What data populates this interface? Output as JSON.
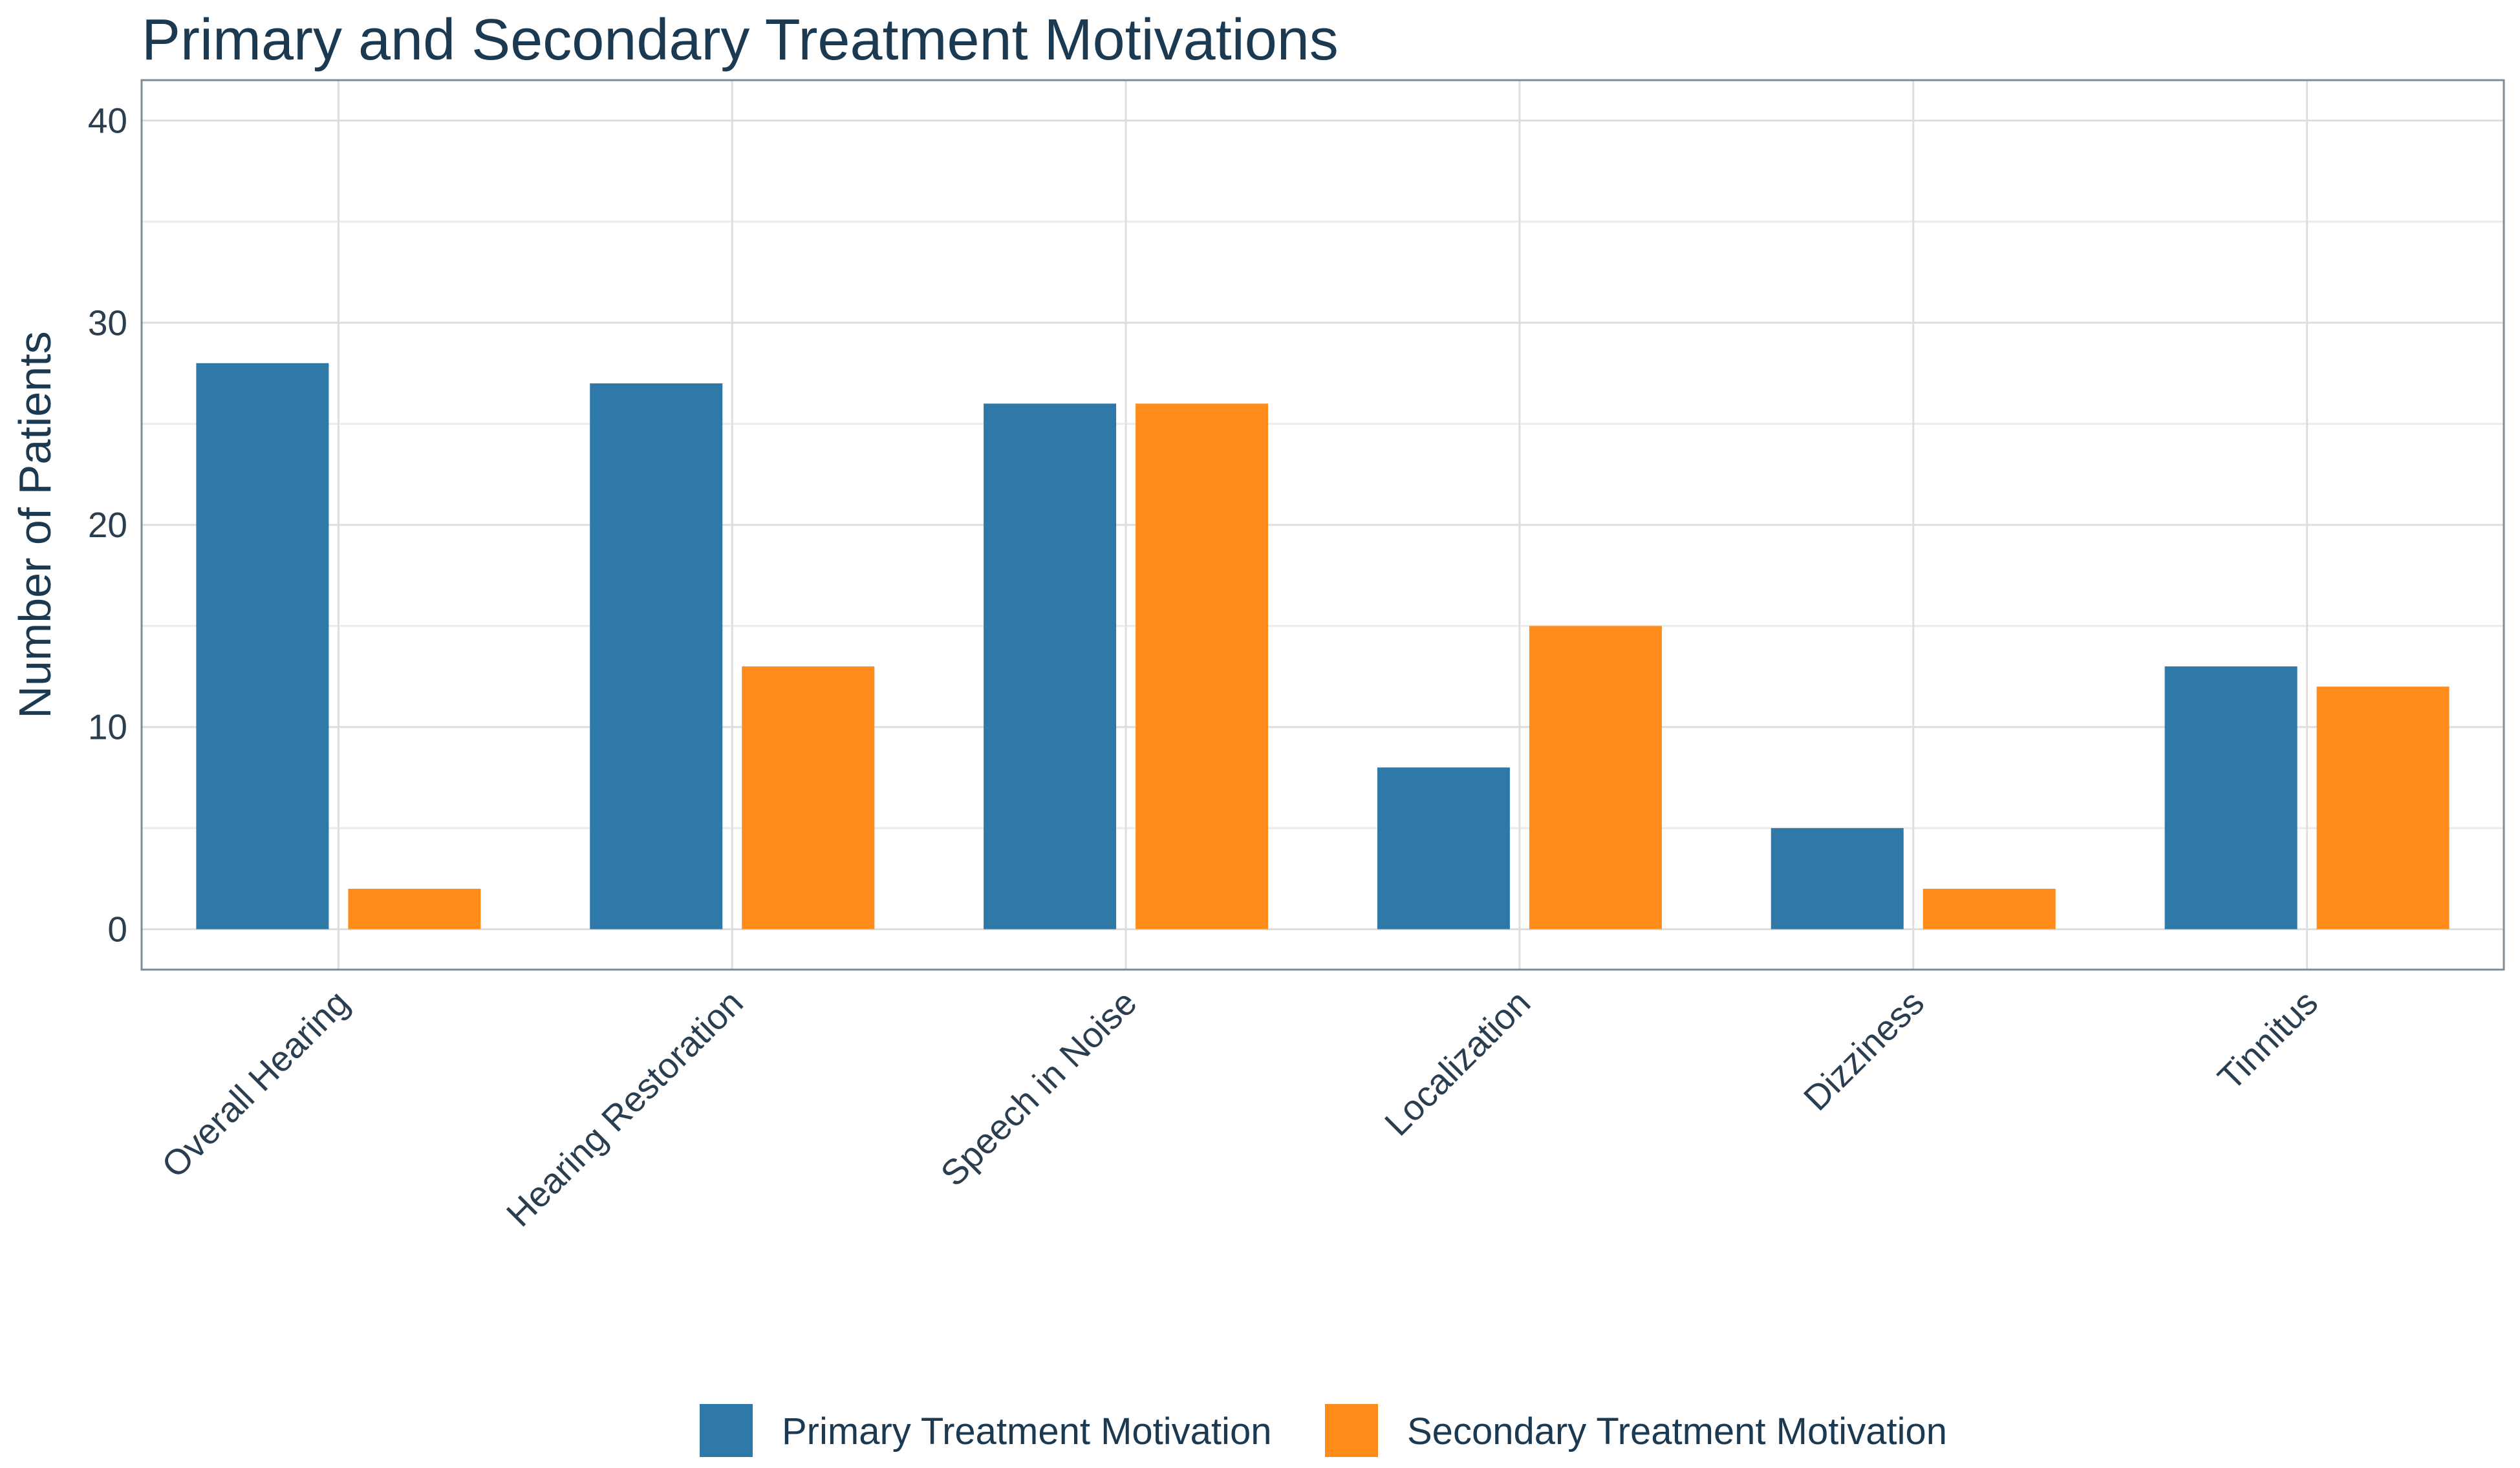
{
  "chart_data": {
    "type": "bar",
    "title": "Primary and Secondary Treatment Motivations",
    "xlabel": "",
    "ylabel": "Number of Patients",
    "categories": [
      "Overall Hearing",
      "Hearing Restoration",
      "Speech in Noise",
      "Localization",
      "Dizziness",
      "Tinnitus"
    ],
    "series": [
      {
        "name": "Primary Treatment Motivation",
        "color": "#2E79A8",
        "values": [
          28,
          27,
          26,
          8,
          5,
          13
        ]
      },
      {
        "name": "Secondary Treatment Motivation",
        "color": "#FF8C1A",
        "values": [
          2,
          13,
          26,
          15,
          2,
          12
        ]
      }
    ],
    "yticks": [
      0,
      10,
      20,
      30,
      40
    ],
    "ylim": [
      -2,
      42
    ],
    "grid": true,
    "legend_position": "bottom"
  }
}
